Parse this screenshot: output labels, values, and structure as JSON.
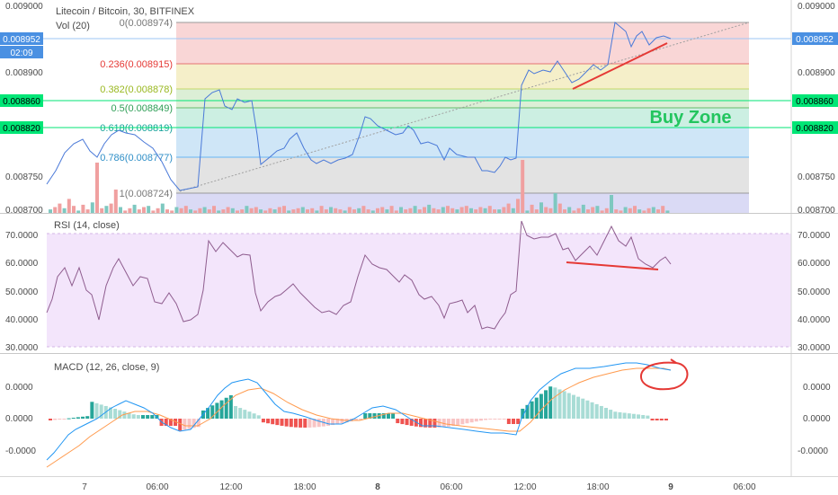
{
  "header": {
    "symbol_title": "Litecoin / Bitcoin, 30, BITFINEX",
    "vol_label": "Vol (20)"
  },
  "price_axis": {
    "ticks": [
      "0.009000",
      "0.008950",
      "0.008900",
      "0.008850",
      "0.008800",
      "0.008750",
      "0.008700"
    ],
    "right_ticks": [
      "0.009000",
      "0.008900",
      "0.008800",
      "0.008750",
      "0.008700"
    ],
    "current_price": "0.008952",
    "countdown": "02:09",
    "level_high": "0.008860",
    "level_low": "0.008820"
  },
  "fibonacci": {
    "levels": [
      {
        "label": "0(0.008974)",
        "color": "#787878"
      },
      {
        "label": "0.236(0.008915)",
        "color": "#e53935"
      },
      {
        "label": "0.382(0.008878)",
        "color": "#9ab820"
      },
      {
        "label": "0.5(0.008849)",
        "color": "#2e9e56"
      },
      {
        "label": "0.618(0.008819)",
        "color": "#1aa39c"
      },
      {
        "label": "0.786(0.008777)",
        "color": "#2f8fc7"
      },
      {
        "label": "1(0.008724)",
        "color": "#787878"
      }
    ],
    "annotation": "Buy Zone",
    "annotation_color": "#22c55e"
  },
  "rsi": {
    "title": "RSI (14, close)",
    "ticks": [
      "70.0000",
      "60.0000",
      "50.0000",
      "40.0000",
      "30.0000"
    ],
    "upper": 70,
    "lower": 30
  },
  "macd": {
    "title": "MACD (12, 26, close, 9)",
    "ticks": [
      "0.0000",
      "0.0000",
      "-0.0000"
    ]
  },
  "time_axis": {
    "ticks": [
      "7",
      "06:00",
      "12:00",
      "18:00",
      "8",
      "06:00",
      "12:00",
      "18:00",
      "9",
      "06:00"
    ]
  },
  "colors": {
    "price_line": "#4a79d8",
    "drawing": "#e53935",
    "vol_up": "#26a69a",
    "vol_down": "#ef5350",
    "rsi_band": "#f3e5fb",
    "rsi_line": "#8e5c8e",
    "macd_line": "#2196f3",
    "signal_line": "#ff9a4d",
    "level_green": "#00e676"
  }
}
